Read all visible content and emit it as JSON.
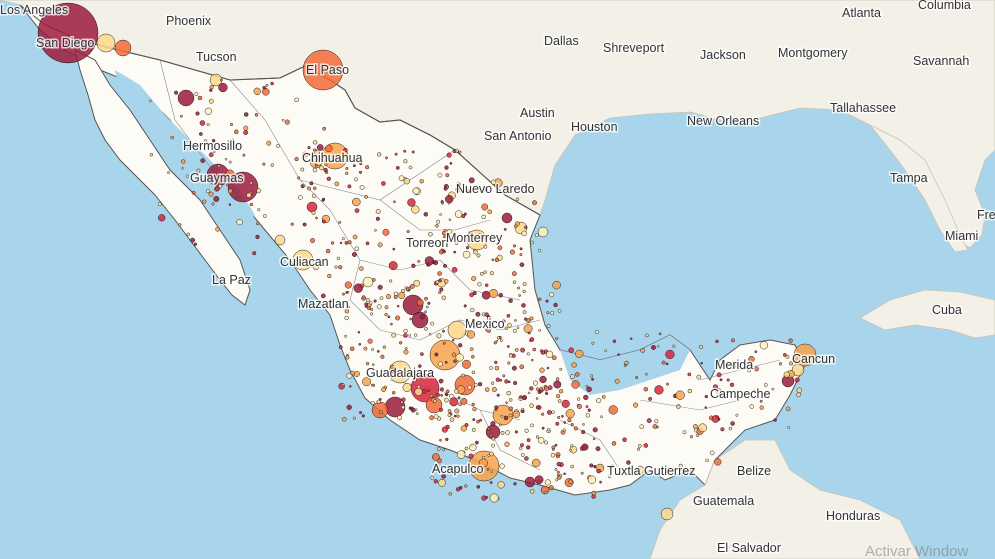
{
  "map": {
    "colors": {
      "water": "#a8d5ec",
      "land": "#f3f0e8",
      "mexico_land": "#fdfbf6",
      "border": "#555555",
      "state_border": "#8a8a8a",
      "label": "#333333"
    },
    "cities": [
      {
        "name": "Los Angeles"
      },
      {
        "name": "Phoenix"
      },
      {
        "name": "Tucson"
      },
      {
        "name": "Dallas"
      },
      {
        "name": "Shreveport"
      },
      {
        "name": "Jackson"
      },
      {
        "name": "Montgomery"
      },
      {
        "name": "Atlanta"
      },
      {
        "name": "Columbia"
      },
      {
        "name": "Savannah"
      },
      {
        "name": "Tallahassee"
      },
      {
        "name": "Austin"
      },
      {
        "name": "San Antonio"
      },
      {
        "name": "Houston"
      },
      {
        "name": "New Orleans"
      },
      {
        "name": "Tampa"
      },
      {
        "name": "Miami"
      },
      {
        "name": "Fre"
      },
      {
        "name": "San Diego"
      },
      {
        "name": "El Paso"
      },
      {
        "name": "Hermosillo"
      },
      {
        "name": "Chihuahua"
      },
      {
        "name": "Guaymas"
      },
      {
        "name": "Nuevo Laredo"
      },
      {
        "name": "Torreon"
      },
      {
        "name": "Monterrey"
      },
      {
        "name": "Culiacan"
      },
      {
        "name": "La Paz"
      },
      {
        "name": "Mazatlan"
      },
      {
        "name": "Mexico"
      },
      {
        "name": "Guadalajara"
      },
      {
        "name": "Cancun"
      },
      {
        "name": "Merida"
      },
      {
        "name": "Campeche"
      },
      {
        "name": "Acapulco"
      },
      {
        "name": "Tuxtla Gutierrez"
      },
      {
        "name": "Belize"
      },
      {
        "name": "Guatemala"
      },
      {
        "name": "Honduras"
      },
      {
        "name": "El Salvador"
      },
      {
        "name": "Cuba"
      }
    ],
    "watermark": "Activar Window"
  }
}
